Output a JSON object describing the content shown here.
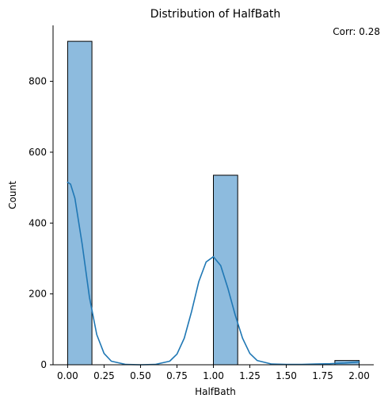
{
  "chart_data": {
    "type": "bar",
    "title": "Distribution of HalfBath",
    "xlabel": "HalfBath",
    "ylabel": "Count",
    "annotation": "Corr: 0.28",
    "xlim": [
      -0.1,
      2.1
    ],
    "ylim": [
      0,
      958
    ],
    "x_ticks": [
      0.0,
      0.25,
      0.5,
      0.75,
      1.0,
      1.25,
      1.5,
      1.75,
      2.0
    ],
    "x_tick_labels": [
      "0.00",
      "0.25",
      "0.50",
      "0.75",
      "1.00",
      "1.25",
      "1.50",
      "1.75",
      "2.00"
    ],
    "y_ticks": [
      0,
      200,
      400,
      600,
      800
    ],
    "y_tick_labels": [
      "0",
      "200",
      "400",
      "600",
      "800"
    ],
    "bins": [
      {
        "x0": 0.0,
        "x1": 0.1667,
        "count": 913
      },
      {
        "x0": 1.0,
        "x1": 1.1667,
        "count": 535
      },
      {
        "x0": 1.8333,
        "x1": 2.0,
        "count": 12
      }
    ],
    "kde": {
      "x": [
        0.0,
        0.02,
        0.05,
        0.1,
        0.15,
        0.2,
        0.25,
        0.3,
        0.4,
        0.5,
        0.6,
        0.7,
        0.75,
        0.8,
        0.85,
        0.9,
        0.95,
        1.0,
        1.05,
        1.1,
        1.15,
        1.2,
        1.25,
        1.3,
        1.4,
        1.5,
        1.6,
        1.7,
        1.8,
        1.9,
        2.0
      ],
      "y": [
        515,
        510,
        470,
        340,
        190,
        85,
        32,
        10,
        1,
        0,
        1,
        10,
        30,
        75,
        150,
        235,
        290,
        305,
        280,
        215,
        140,
        75,
        32,
        12,
        2,
        1,
        1,
        2,
        3,
        5,
        8
      ]
    },
    "colors": {
      "bar_fill": "#8dbbde",
      "bar_edge": "#000000",
      "kde_line": "#1f77b4",
      "axis": "#000000"
    },
    "grid": false,
    "legend": false
  }
}
